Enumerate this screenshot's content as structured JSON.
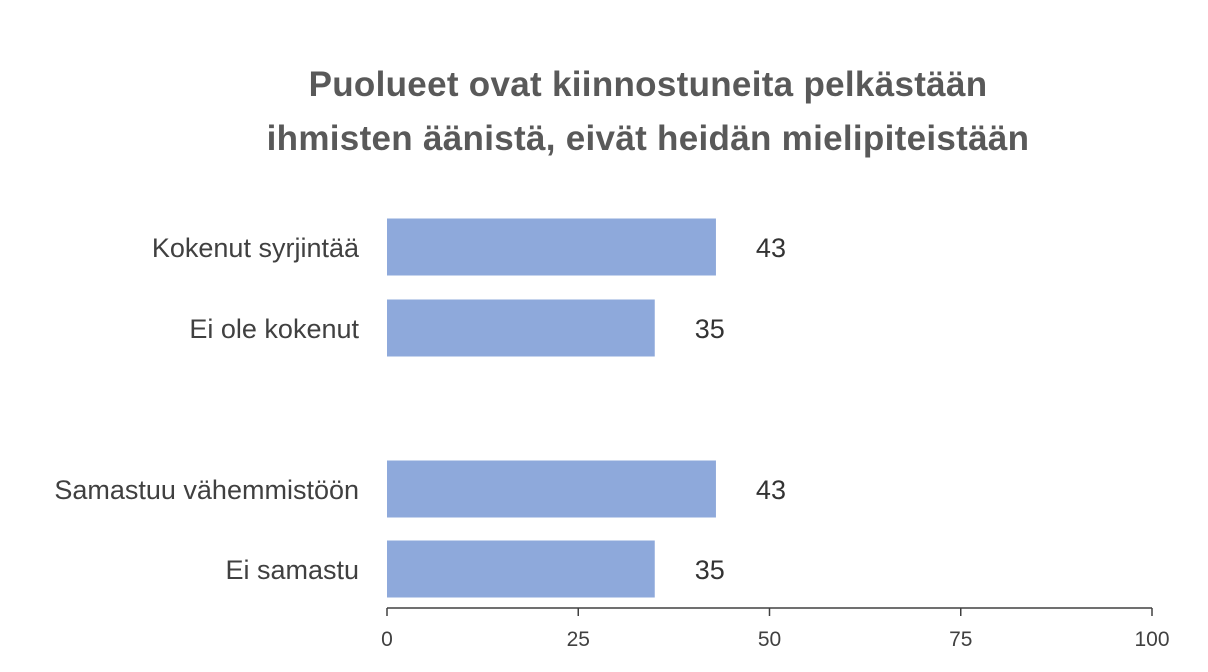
{
  "chart_data": {
    "type": "bar",
    "orientation": "horizontal",
    "title_lines": [
      "Puolueet ovat kiinnostuneita pelkästään",
      "ihmisten äänistä, eivät heidän mielipiteistään"
    ],
    "groups": [
      {
        "categories": [
          "Kokenut syrjintää",
          "Ei ole kokenut"
        ],
        "values": [
          43,
          35
        ]
      },
      {
        "categories": [
          "Samastuu vähemmistöön",
          "Ei samastu"
        ],
        "values": [
          43,
          35
        ]
      }
    ],
    "xlim": [
      0,
      100
    ],
    "xticks": [
      0,
      25,
      50,
      75,
      100
    ],
    "grid": false,
    "bar_color": "#8EA9DB",
    "data_labels": true
  }
}
